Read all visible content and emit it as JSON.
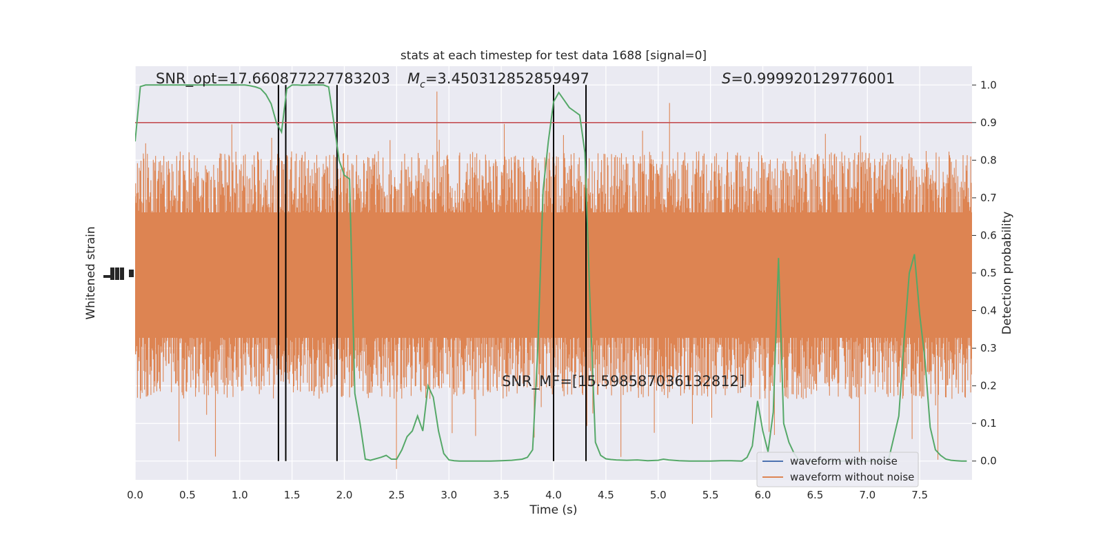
{
  "chart_data": {
    "type": "line",
    "title": "stats at each timestep for test data 1688 [signal=0]",
    "xlabel": "Time (s)",
    "ylabel_left": "Whitened strain",
    "ylabel_right": "Detection probability",
    "xlim": [
      0.0,
      8.0
    ],
    "ylim_right": [
      -0.05,
      1.05
    ],
    "x_ticks": [
      0.0,
      0.5,
      1.0,
      1.5,
      2.0,
      2.5,
      3.0,
      3.5,
      4.0,
      4.5,
      5.0,
      5.5,
      6.0,
      6.5,
      7.0,
      7.5
    ],
    "x_tick_labels": [
      "0.0",
      "0.5",
      "1.0",
      "1.5",
      "2.0",
      "2.5",
      "3.0",
      "3.5",
      "4.0",
      "4.5",
      "5.0",
      "5.5",
      "6.0",
      "6.5",
      "7.0",
      "7.5"
    ],
    "y_ticks_right": [
      0.0,
      0.1,
      0.2,
      0.3,
      0.4,
      0.5,
      0.6,
      0.7,
      0.8,
      0.9,
      1.0
    ],
    "y_tick_labels_right": [
      "0.0",
      "0.1",
      "0.2",
      "0.3",
      "0.4",
      "0.5",
      "0.6",
      "0.7",
      "0.8",
      "0.9",
      "1.0"
    ],
    "grid": true,
    "legend_position": "lower-right",
    "legend": [
      {
        "label": "waveform with noise",
        "color": "#4c72b0"
      },
      {
        "label": "waveform without noise",
        "color": "#dd8452"
      }
    ],
    "threshold": {
      "y": 0.9,
      "color": "#c44e52"
    },
    "vertical_lines_x": [
      1.37,
      1.44,
      1.93,
      4.0,
      4.31
    ],
    "annotations": {
      "snr_opt": "SNR_opt=17.660877227783203",
      "mc_symbol": "M",
      "mc_sub": "c",
      "mc_value": "=3.450312852859497",
      "s_symbol": "S",
      "s_value": "=0.999920129776001",
      "snr_mf": "SNR_MF=[15.598587036132812]"
    },
    "series": [
      {
        "name": "Detection probability",
        "color": "#55a868",
        "x": [
          0.0,
          0.05,
          0.1,
          0.15,
          0.2,
          0.3,
          0.4,
          0.5,
          0.6,
          0.7,
          0.8,
          0.9,
          1.0,
          1.05,
          1.1,
          1.15,
          1.2,
          1.25,
          1.3,
          1.35,
          1.4,
          1.45,
          1.5,
          1.55,
          1.6,
          1.7,
          1.8,
          1.85,
          1.9,
          1.95,
          2.0,
          2.05,
          2.1,
          2.15,
          2.2,
          2.25,
          2.35,
          2.4,
          2.45,
          2.5,
          2.55,
          2.6,
          2.65,
          2.7,
          2.75,
          2.8,
          2.85,
          2.9,
          2.95,
          3.0,
          3.05,
          3.1,
          3.2,
          3.3,
          3.4,
          3.5,
          3.6,
          3.7,
          3.75,
          3.8,
          3.85,
          3.9,
          3.95,
          4.0,
          4.05,
          4.1,
          4.15,
          4.2,
          4.25,
          4.3,
          4.35,
          4.4,
          4.45,
          4.5,
          4.55,
          4.6,
          4.7,
          4.8,
          4.9,
          5.0,
          5.05,
          5.1,
          5.2,
          5.3,
          5.4,
          5.5,
          5.6,
          5.7,
          5.8,
          5.85,
          5.9,
          5.95,
          6.0,
          6.05,
          6.1,
          6.15,
          6.2,
          6.25,
          6.3,
          6.35,
          6.4,
          6.5,
          6.6,
          6.7,
          6.8,
          6.9,
          7.0,
          7.1,
          7.2,
          7.25,
          7.3,
          7.35,
          7.4,
          7.45,
          7.5,
          7.55,
          7.6,
          7.65,
          7.7,
          7.75,
          7.8,
          7.85,
          7.9,
          7.95
        ],
        "values": [
          0.85,
          0.996,
          1.0,
          1.0,
          1.0,
          1.0,
          1.0,
          1.0,
          1.0,
          1.0,
          1.0,
          1.0,
          1.0,
          1.0,
          0.998,
          0.995,
          0.99,
          0.975,
          0.95,
          0.9,
          0.875,
          0.99,
          1.0,
          1.0,
          0.999,
          1.0,
          1.0,
          0.995,
          0.9,
          0.8,
          0.76,
          0.75,
          0.18,
          0.1,
          0.005,
          0.002,
          0.01,
          0.015,
          0.005,
          0.005,
          0.03,
          0.065,
          0.08,
          0.12,
          0.08,
          0.2,
          0.17,
          0.08,
          0.02,
          0.003,
          0.001,
          0.0,
          0.0,
          0.0,
          0.0,
          0.001,
          0.002,
          0.005,
          0.01,
          0.03,
          0.3,
          0.72,
          0.85,
          0.955,
          0.98,
          0.96,
          0.94,
          0.93,
          0.92,
          0.82,
          0.41,
          0.05,
          0.015,
          0.006,
          0.004,
          0.003,
          0.002,
          0.003,
          0.001,
          0.002,
          0.005,
          0.003,
          0.001,
          0.0,
          0.0,
          0.0,
          0.001,
          0.001,
          0.0,
          0.01,
          0.04,
          0.16,
          0.08,
          0.025,
          0.13,
          0.54,
          0.1,
          0.05,
          0.02,
          0.001,
          0.0,
          0.0,
          0.0,
          0.0,
          0.0,
          0.0,
          0.0,
          0.0,
          0.001,
          0.06,
          0.12,
          0.32,
          0.5,
          0.55,
          0.39,
          0.27,
          0.09,
          0.03,
          0.015,
          0.005,
          0.002,
          0.001,
          0.0,
          0.0
        ]
      }
    ]
  }
}
